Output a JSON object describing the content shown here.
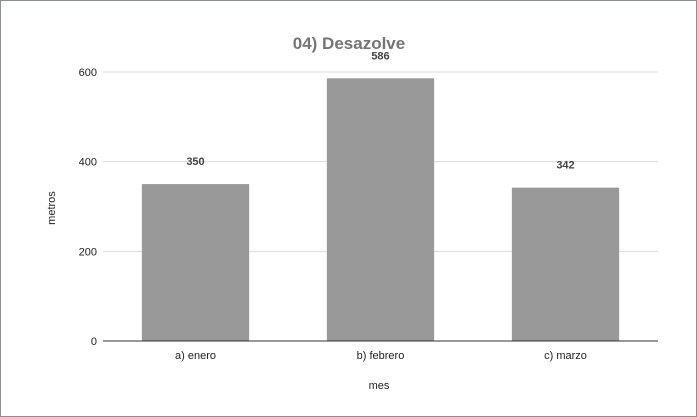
{
  "chart_data": {
    "type": "bar",
    "title": "04) Desazolve",
    "xlabel": "mes",
    "ylabel": "metros",
    "categories": [
      "a) enero",
      "b) febrero",
      "c) marzo"
    ],
    "values": [
      350,
      586,
      342
    ],
    "data_labels": [
      "350",
      "586",
      "342"
    ],
    "ylim": [
      0,
      600
    ],
    "yticks": [
      0,
      200,
      400,
      600
    ],
    "ytick_labels": [
      "0",
      "200",
      "400",
      "600"
    ],
    "grid": true,
    "legend": "none",
    "colors": {
      "bar": "#999999",
      "grid": "#d9d9d9",
      "axis": "#333333"
    }
  }
}
